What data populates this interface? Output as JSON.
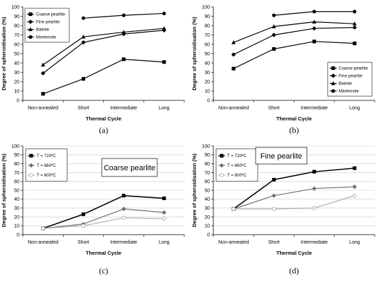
{
  "chart_data": [
    {
      "type": "line",
      "panel_label": "(a)",
      "xlabel": "Thermal Cycle",
      "ylabel": "Degree of spheroidisation (%)",
      "categories": [
        "Non-annealed",
        "Short",
        "Intermediate",
        "Long"
      ],
      "ylim": [
        0,
        100
      ],
      "yticks": [
        0,
        10,
        20,
        30,
        40,
        50,
        60,
        70,
        80,
        90,
        100
      ],
      "grid": false,
      "legend_position": "top-left",
      "legend_frame": true,
      "annotation": "",
      "series": [
        {
          "name": "Coarse pearlite",
          "values": [
            7,
            23,
            44,
            41
          ],
          "marker": "square",
          "color": "#000000",
          "dash": ""
        },
        {
          "name": "Fine pearlite",
          "values": [
            29,
            62,
            71,
            75
          ],
          "marker": "diamond",
          "color": "#000000",
          "dash": ""
        },
        {
          "name": "Bainite",
          "values": [
            38,
            68,
            73,
            77
          ],
          "marker": "triangle",
          "color": "#000000",
          "dash": ""
        },
        {
          "name": "Martensite",
          "values": [
            null,
            88,
            91,
            93
          ],
          "marker": "circle",
          "color": "#000000",
          "dash": ""
        }
      ]
    },
    {
      "type": "line",
      "panel_label": "(b)",
      "xlabel": "Thermal Cycle",
      "ylabel": "Degree of spheroidisation (%)",
      "categories": [
        "Non-annealed",
        "Short",
        "Intermediate",
        "Long"
      ],
      "ylim": [
        0,
        100
      ],
      "yticks": [
        0,
        10,
        20,
        30,
        40,
        50,
        60,
        70,
        80,
        90,
        100
      ],
      "grid": false,
      "legend_position": "bottom-right",
      "legend_frame": true,
      "annotation": "",
      "series": [
        {
          "name": "Coarse pearlite",
          "values": [
            34,
            55,
            63,
            61
          ],
          "marker": "square",
          "color": "#000000",
          "dash": ""
        },
        {
          "name": "Fine pearlite",
          "values": [
            49,
            70,
            77,
            78
          ],
          "marker": "diamond",
          "color": "#000000",
          "dash": ""
        },
        {
          "name": "Bainite",
          "values": [
            62,
            79,
            84,
            82
          ],
          "marker": "triangle",
          "color": "#000000",
          "dash": ""
        },
        {
          "name": "Martensite",
          "values": [
            null,
            91,
            95,
            95
          ],
          "marker": "circle",
          "color": "#000000",
          "dash": ""
        }
      ]
    },
    {
      "type": "line",
      "panel_label": "(c)",
      "xlabel": "Thermal Cycle",
      "ylabel": "Degree of spheroidisation (%)",
      "categories": [
        "Non-annealed",
        "Short",
        "Intermediate",
        "Long"
      ],
      "ylim": [
        0,
        100
      ],
      "yticks": [
        0,
        10,
        20,
        30,
        40,
        50,
        60,
        70,
        80,
        90,
        100
      ],
      "grid": true,
      "legend_position": "top-left",
      "legend_frame": true,
      "annotation": "Coarse pearlite",
      "series": [
        {
          "name": "T = 720ºC",
          "values": [
            7,
            23,
            44,
            41
          ],
          "marker": "square",
          "color": "#000000",
          "dash": ""
        },
        {
          "name": "T = 660ºC",
          "values": [
            7,
            12,
            29,
            25
          ],
          "marker": "diamond",
          "color": "#707070",
          "dash": ""
        },
        {
          "name": "T = 600ºC",
          "values": [
            7,
            10,
            19,
            18
          ],
          "marker": "circle-open",
          "color": "#b0b0b0",
          "dash": ""
        }
      ]
    },
    {
      "type": "line",
      "panel_label": "(d)",
      "xlabel": "Thermal Cycle",
      "ylabel": "Degree of spheroidisation (%)",
      "categories": [
        "Non-annealed",
        "Short",
        "Intermediate",
        "Long"
      ],
      "ylim": [
        0,
        100
      ],
      "yticks": [
        0,
        10,
        20,
        30,
        40,
        50,
        60,
        70,
        80,
        90,
        100
      ],
      "grid": true,
      "legend_position": "top-left",
      "legend_frame": true,
      "annotation": "Fine pearlite",
      "series": [
        {
          "name": "T = 720ºC",
          "values": [
            29,
            62,
            71,
            75
          ],
          "marker": "square",
          "color": "#000000",
          "dash": ""
        },
        {
          "name": "T = 660ºC",
          "values": [
            29,
            44,
            52,
            54
          ],
          "marker": "diamond",
          "color": "#707070",
          "dash": ""
        },
        {
          "name": "T = 600ºC",
          "values": [
            29,
            29,
            30,
            44
          ],
          "marker": "circle-open",
          "color": "#b0b0b0",
          "dash": ""
        }
      ]
    }
  ]
}
